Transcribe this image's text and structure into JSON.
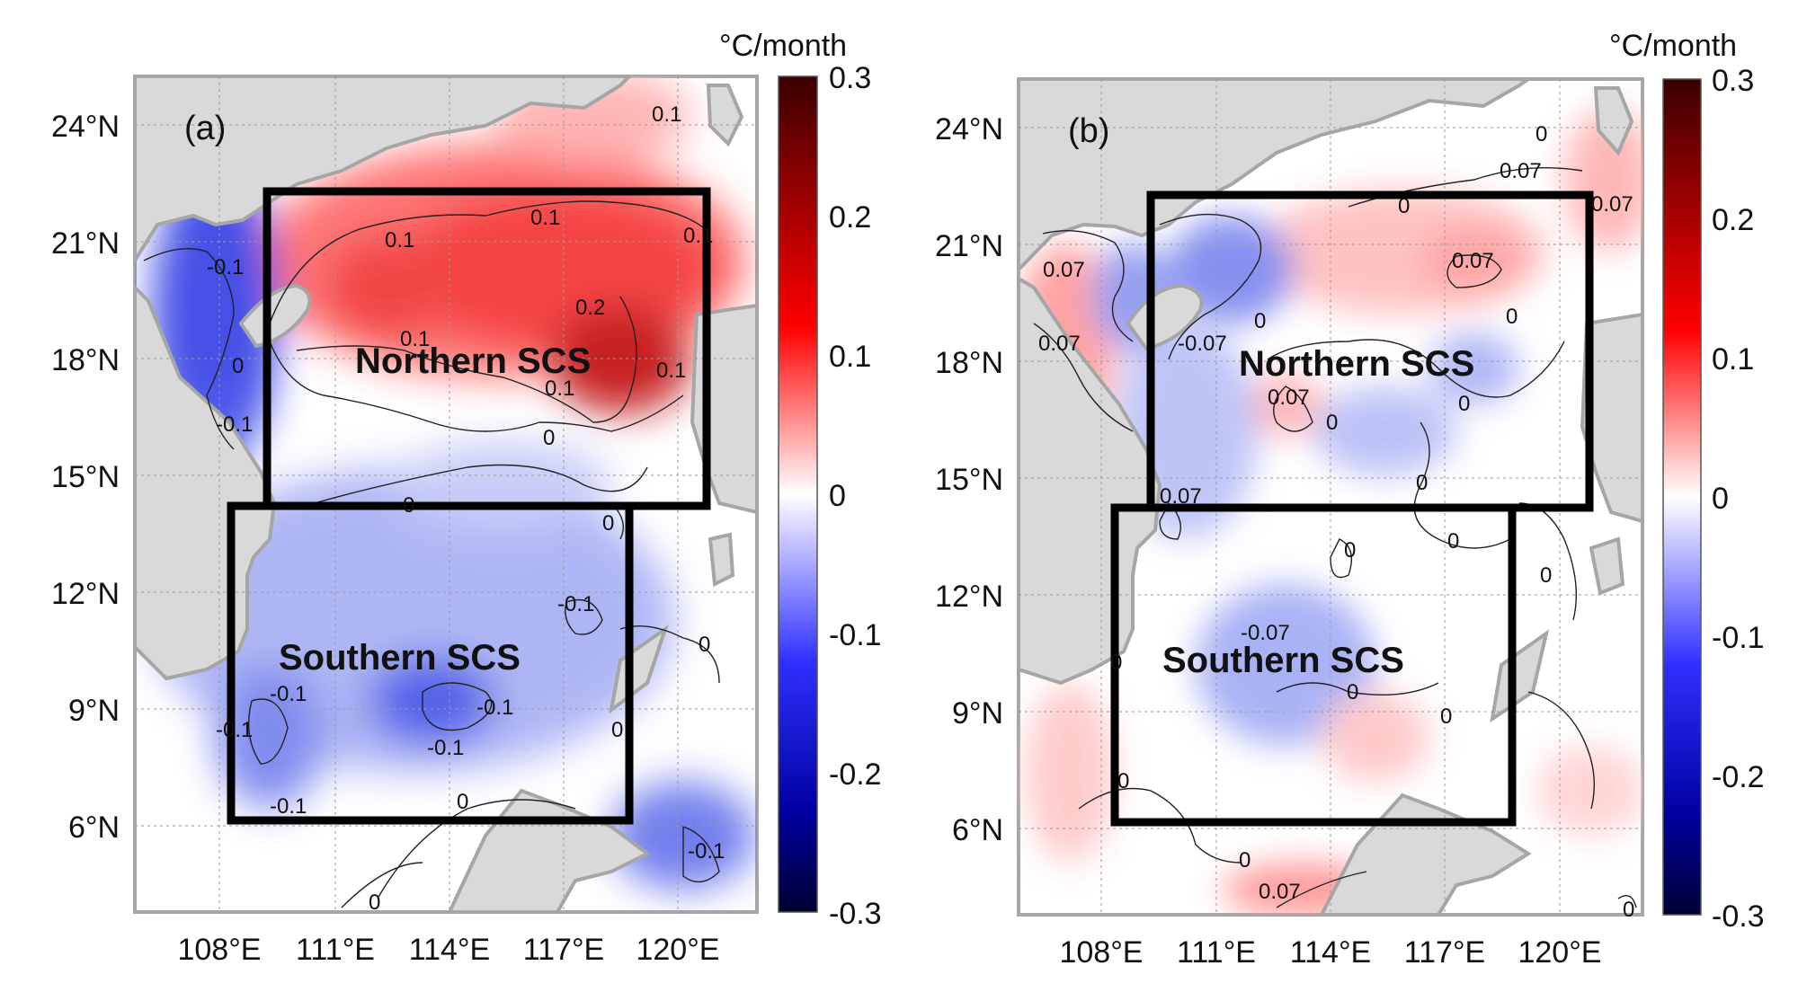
{
  "figure": {
    "unit_label_a": "°C/month",
    "unit_label_b": "°C/month",
    "lat_ticks": [
      "24°N",
      "21°N",
      "18°N",
      "15°N",
      "12°N",
      "9°N",
      "6°N"
    ],
    "lon_ticks": [
      "108°E",
      "111°E",
      "114°E",
      "117°E",
      "120°E"
    ],
    "colorbar_ticks": [
      "0.3",
      "0.2",
      "0.1",
      "0",
      "-0.1",
      "-0.2",
      "-0.3"
    ],
    "colorbar_range": [
      -0.3,
      0.3
    ],
    "colors": {
      "land": "#d9d9d9",
      "coast": "#a6a6a6",
      "box": "#000000",
      "warm": "#d7191c",
      "cool": "#1f3fd6"
    }
  },
  "panel_a": {
    "label": "(a)",
    "northern_box_label": "Northern SCS",
    "southern_box_label": "Southern SCS",
    "contour_labels": [
      "0.1",
      "0.1",
      "0.1",
      "0.1",
      "0.1",
      "0.1",
      "0.1",
      "0.2",
      "0",
      "0",
      "0",
      "0",
      "0",
      "0",
      "0",
      "0",
      "-0.1",
      "-0.1",
      "-0.1",
      "-0.1",
      "-0.1",
      "-0.1",
      "-0.1",
      "-0.1",
      "-0.1"
    ]
  },
  "panel_b": {
    "label": "(b)",
    "northern_box_label": "Northern SCS",
    "southern_box_label": "Southern SCS",
    "contour_labels": [
      "0",
      "0.07",
      "0.07",
      "0.07",
      "0",
      "0.07",
      "0.07",
      "-0.07",
      "0",
      "0.07",
      "0",
      "0",
      "0",
      "0.07",
      "0",
      "0",
      "0",
      "0",
      "-0.07",
      "0",
      "0",
      "0",
      "0",
      "0",
      "0.07",
      "0"
    ]
  }
}
